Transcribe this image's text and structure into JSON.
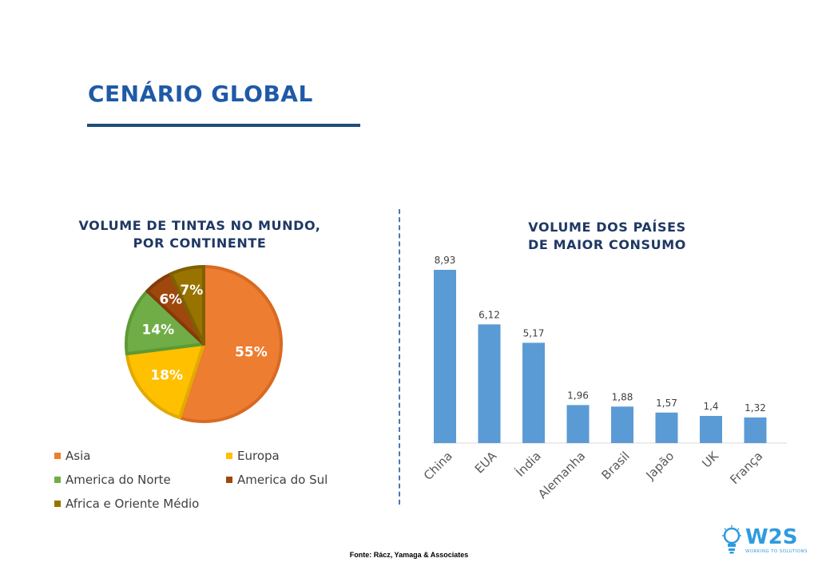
{
  "page": {
    "title": "CENÁRIO GLOBAL",
    "source": "Fonte: Rácz, Yamaga & Associates"
  },
  "colors": {
    "title": "#1f5aa6",
    "underline": "#1f4e79",
    "chart_title": "#1f3864",
    "bar": "#5b9bd5",
    "axis": "#d9d9d9",
    "logo": "#2e9be0"
  },
  "logo": {
    "text": "W2S",
    "tagline": "WORKING TO SOLUTIONS",
    "icon": "lightbulb-icon"
  },
  "chart_data": [
    {
      "type": "pie",
      "title_lines": [
        "VOLUME DE TINTAS NO MUNDO,",
        "POR CONTINENTE"
      ],
      "slices": [
        {
          "label": "Asia",
          "value": 55,
          "display": "55%",
          "color": "#ed7d31",
          "border": "#d86a22"
        },
        {
          "label": "Europa",
          "value": 18,
          "display": "18%",
          "color": "#ffc000",
          "border": "#e3aa00"
        },
        {
          "label": "America do Norte",
          "value": 14,
          "display": "14%",
          "color": "#70ad47",
          "border": "#5b9a34"
        },
        {
          "label": "America do Sul",
          "value": 6,
          "display": "6%",
          "color": "#9e480e",
          "border": "#843a0a"
        },
        {
          "label": "Africa e Oriente Médio",
          "value": 7,
          "display": "7%",
          "color": "#997300",
          "border": "#7f6000"
        }
      ],
      "legend_placement": "bottom"
    },
    {
      "type": "bar",
      "title_lines": [
        "VOLUME DOS PAÍSES",
        "DE MAIOR CONSUMO"
      ],
      "categories": [
        "China",
        "EUA",
        "Índia",
        "Alemanha",
        "Brasil",
        "Japão",
        "UK",
        "França"
      ],
      "values": [
        8.93,
        6.12,
        5.17,
        1.96,
        1.88,
        1.57,
        1.4,
        1.32
      ],
      "value_labels": [
        "8,93",
        "6,12",
        "5,17",
        "1,96",
        "1,88",
        "1,57",
        "1,4",
        "1,32"
      ],
      "ylim": [
        0,
        8.93
      ],
      "grid": false,
      "xlabel": "",
      "ylabel": ""
    }
  ]
}
